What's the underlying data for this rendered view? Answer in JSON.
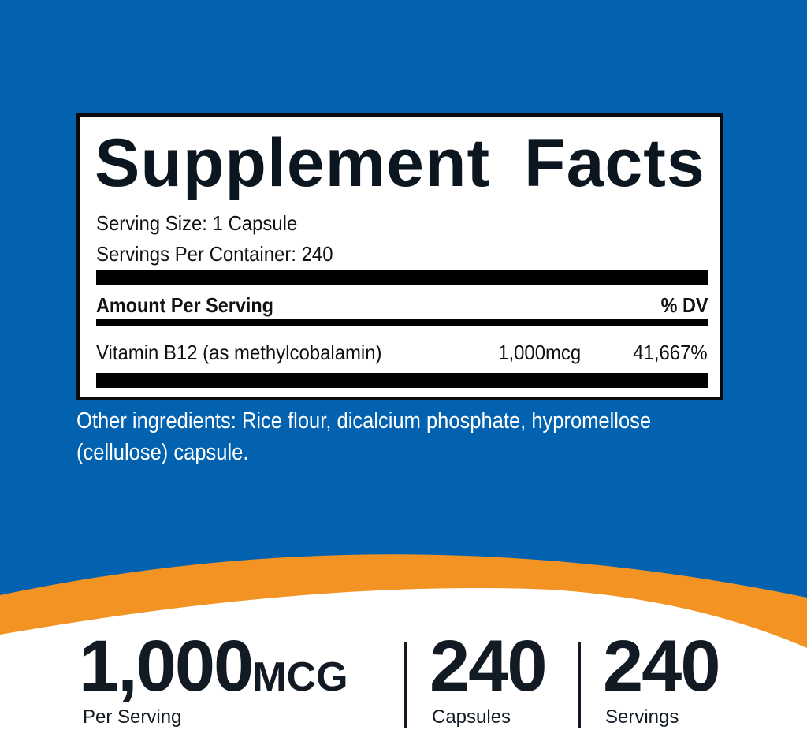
{
  "colors": {
    "blue": "#0262b0",
    "orange": "#f29324",
    "white": "#ffffff",
    "dark": "#121a24"
  },
  "facts": {
    "title": "Supplement Facts",
    "serving_size": "Serving Size: 1 Capsule",
    "servings_per_container": "Servings Per Container: 240",
    "amount_header": "Amount Per Serving",
    "dv_header": "% DV",
    "rows": [
      {
        "name": "Vitamin B12 (as methylcobalamin)",
        "amount": "1,000mcg",
        "dv": "41,667%"
      }
    ]
  },
  "other_ingredients": {
    "line1": "Other ingredients: Rice flour, dicalcium phosphate, hypromellose",
    "line2": "(cellulose) capsule."
  },
  "stats": [
    {
      "value": "1,000",
      "unit": "MCG",
      "label": "Per Serving"
    },
    {
      "value": "240",
      "label": "Capsules"
    },
    {
      "value": "240",
      "label": "Servings"
    }
  ]
}
